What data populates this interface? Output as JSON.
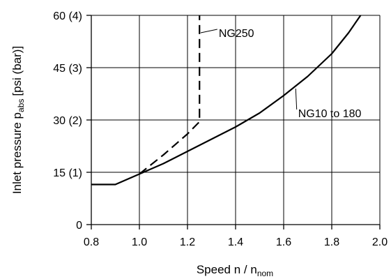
{
  "chart_data": {
    "type": "line",
    "title": "",
    "xlabel": "Speed n / n",
    "xlabel_subscript": "nom",
    "ylabel": "Inlet pressure p",
    "ylabel_subscript": "abs",
    "ylabel_suffix": "[psi (bar)]",
    "xlim": [
      0.8,
      2.0
    ],
    "ylim": [
      0,
      60
    ],
    "grid": true,
    "x_ticks": [
      {
        "value": 0.8,
        "label": "0.8"
      },
      {
        "value": 1.0,
        "label": "1.0"
      },
      {
        "value": 1.2,
        "label": "1.2"
      },
      {
        "value": 1.4,
        "label": "1.4"
      },
      {
        "value": 1.6,
        "label": "1.6"
      },
      {
        "value": 1.8,
        "label": "1.8"
      },
      {
        "value": 2.0,
        "label": "2.0"
      }
    ],
    "y_ticks": [
      {
        "value": 0,
        "label": "0"
      },
      {
        "value": 15,
        "label": "15 (1)"
      },
      {
        "value": 30,
        "label": "30 (2)"
      },
      {
        "value": 45,
        "label": "45 (3)"
      },
      {
        "value": 60,
        "label": "60 (4)"
      }
    ],
    "series": [
      {
        "name": "NG10 to 180",
        "style": "solid",
        "x": [
          0.8,
          0.9,
          1.0,
          1.1,
          1.2,
          1.3,
          1.4,
          1.5,
          1.6,
          1.7,
          1.8,
          1.87,
          1.92
        ],
        "y": [
          11.5,
          11.5,
          14.5,
          17.5,
          21,
          24.5,
          28,
          32,
          37,
          42.5,
          49,
          55,
          60
        ]
      },
      {
        "name": "NG250",
        "style": "dashed",
        "x": [
          1.0,
          1.1,
          1.2,
          1.25,
          1.25
        ],
        "y": [
          14.5,
          20,
          26,
          29.5,
          60
        ]
      }
    ],
    "labels": [
      {
        "text": "NG250",
        "series": 1,
        "anchor_x": 1.255,
        "anchor_y": 55,
        "label_x": 1.33,
        "label_y": 55
      },
      {
        "text": "NG10 to 180",
        "series": 0,
        "anchor_x": 1.65,
        "anchor_y": 39,
        "label_x": 1.66,
        "label_y": 32
      }
    ]
  }
}
